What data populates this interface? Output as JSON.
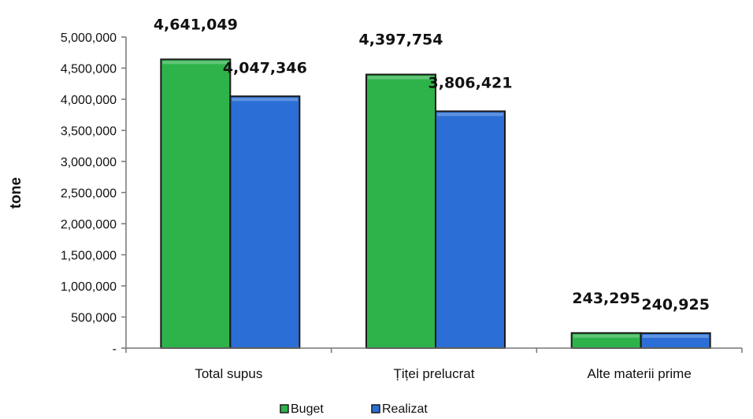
{
  "chart_data": {
    "type": "bar",
    "categories": [
      "Total supus",
      "Țiței prelucrat",
      "Alte materii prime"
    ],
    "series": [
      {
        "name": "Buget",
        "color": "#2db34a",
        "values": [
          4641049,
          4397754,
          243295
        ],
        "labels": [
          "4,641,049",
          "4,397,754",
          "243,295"
        ]
      },
      {
        "name": "Realizat",
        "color": "#2b6fd6",
        "values": [
          4047346,
          3806421,
          240925
        ],
        "labels": [
          "4,047,346",
          "3,806,421",
          "240,925"
        ]
      }
    ],
    "ylabel": "tone",
    "ylim": [
      0,
      5000000
    ],
    "yticks": [
      {
        "value": 0,
        "label": "-"
      },
      {
        "value": 500000,
        "label": "500,000"
      },
      {
        "value": 1000000,
        "label": "1,000,000"
      },
      {
        "value": 1500000,
        "label": "1,500,000"
      },
      {
        "value": 2000000,
        "label": "2,000,000"
      },
      {
        "value": 2500000,
        "label": "2,500,000"
      },
      {
        "value": 3000000,
        "label": "3,000,000"
      },
      {
        "value": 3500000,
        "label": "3,500,000"
      },
      {
        "value": 4000000,
        "label": "4,000,000"
      },
      {
        "value": 4500000,
        "label": "4,500,000"
      },
      {
        "value": 5000000,
        "label": "5,000,000"
      }
    ],
    "grid": false,
    "legend_position": "bottom"
  }
}
